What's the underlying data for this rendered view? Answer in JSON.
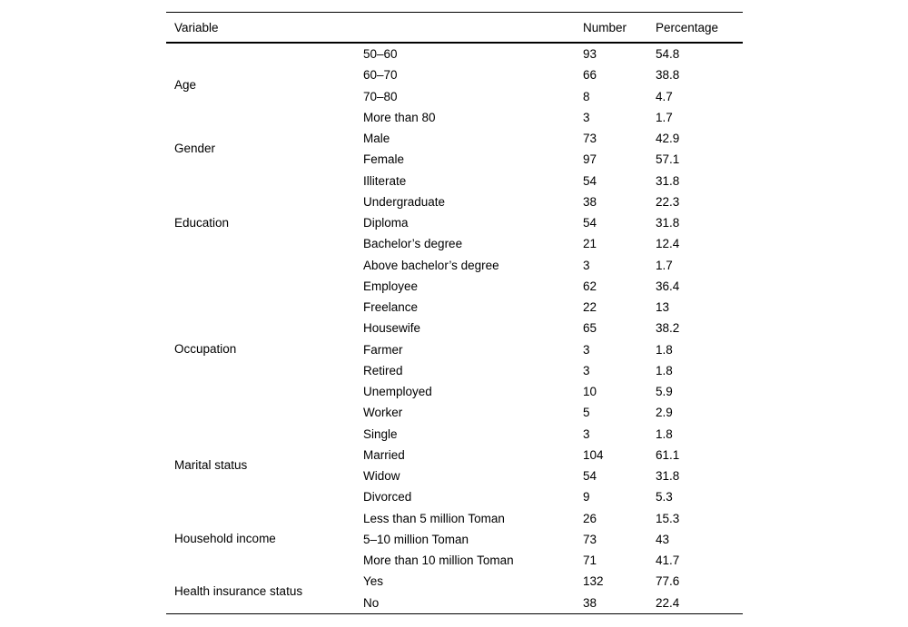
{
  "table": {
    "headers": {
      "variable": "Variable",
      "number": "Number",
      "percentage": "Percentage"
    },
    "groups": [
      {
        "variable": "Age",
        "rows": [
          {
            "category": "50–60",
            "number": "93",
            "percentage": "54.8"
          },
          {
            "category": "60–70",
            "number": "66",
            "percentage": "38.8"
          },
          {
            "category": "70–80",
            "number": "8",
            "percentage": "4.7"
          },
          {
            "category": "More than 80",
            "number": "3",
            "percentage": "1.7"
          }
        ]
      },
      {
        "variable": "Gender",
        "rows": [
          {
            "category": "Male",
            "number": "73",
            "percentage": "42.9"
          },
          {
            "category": "Female",
            "number": "97",
            "percentage": "57.1"
          }
        ]
      },
      {
        "variable": "Education",
        "rows": [
          {
            "category": "Illiterate",
            "number": "54",
            "percentage": "31.8"
          },
          {
            "category": "Undergraduate",
            "number": "38",
            "percentage": "22.3"
          },
          {
            "category": "Diploma",
            "number": "54",
            "percentage": "31.8"
          },
          {
            "category": "Bachelor’s degree",
            "number": "21",
            "percentage": "12.4"
          },
          {
            "category": "Above bachelor’s degree",
            "number": "3",
            "percentage": "1.7"
          }
        ]
      },
      {
        "variable": "Occupation",
        "rows": [
          {
            "category": "Employee",
            "number": "62",
            "percentage": "36.4"
          },
          {
            "category": "Freelance",
            "number": "22",
            "percentage": "13"
          },
          {
            "category": "Housewife",
            "number": "65",
            "percentage": "38.2"
          },
          {
            "category": "Farmer",
            "number": "3",
            "percentage": "1.8"
          },
          {
            "category": "Retired",
            "number": "3",
            "percentage": "1.8"
          },
          {
            "category": "Unemployed",
            "number": "10",
            "percentage": "5.9"
          },
          {
            "category": "Worker",
            "number": "5",
            "percentage": "2.9"
          }
        ]
      },
      {
        "variable": "Marital status",
        "rows": [
          {
            "category": "Single",
            "number": "3",
            "percentage": "1.8"
          },
          {
            "category": "Married",
            "number": "104",
            "percentage": "61.1"
          },
          {
            "category": "Widow",
            "number": "54",
            "percentage": "31.8"
          },
          {
            "category": "Divorced",
            "number": "9",
            "percentage": "5.3"
          }
        ]
      },
      {
        "variable": "Household income",
        "rows": [
          {
            "category": "Less than 5 million Toman",
            "number": "26",
            "percentage": "15.3"
          },
          {
            "category": "5–10 million Toman",
            "number": "73",
            "percentage": "43"
          },
          {
            "category": "More than 10 million Toman",
            "number": "71",
            "percentage": "41.7"
          }
        ]
      },
      {
        "variable": "Health insurance status",
        "rows": [
          {
            "category": "Yes",
            "number": "132",
            "percentage": "77.6"
          },
          {
            "category": "No",
            "number": "38",
            "percentage": "22.4"
          }
        ]
      }
    ]
  }
}
